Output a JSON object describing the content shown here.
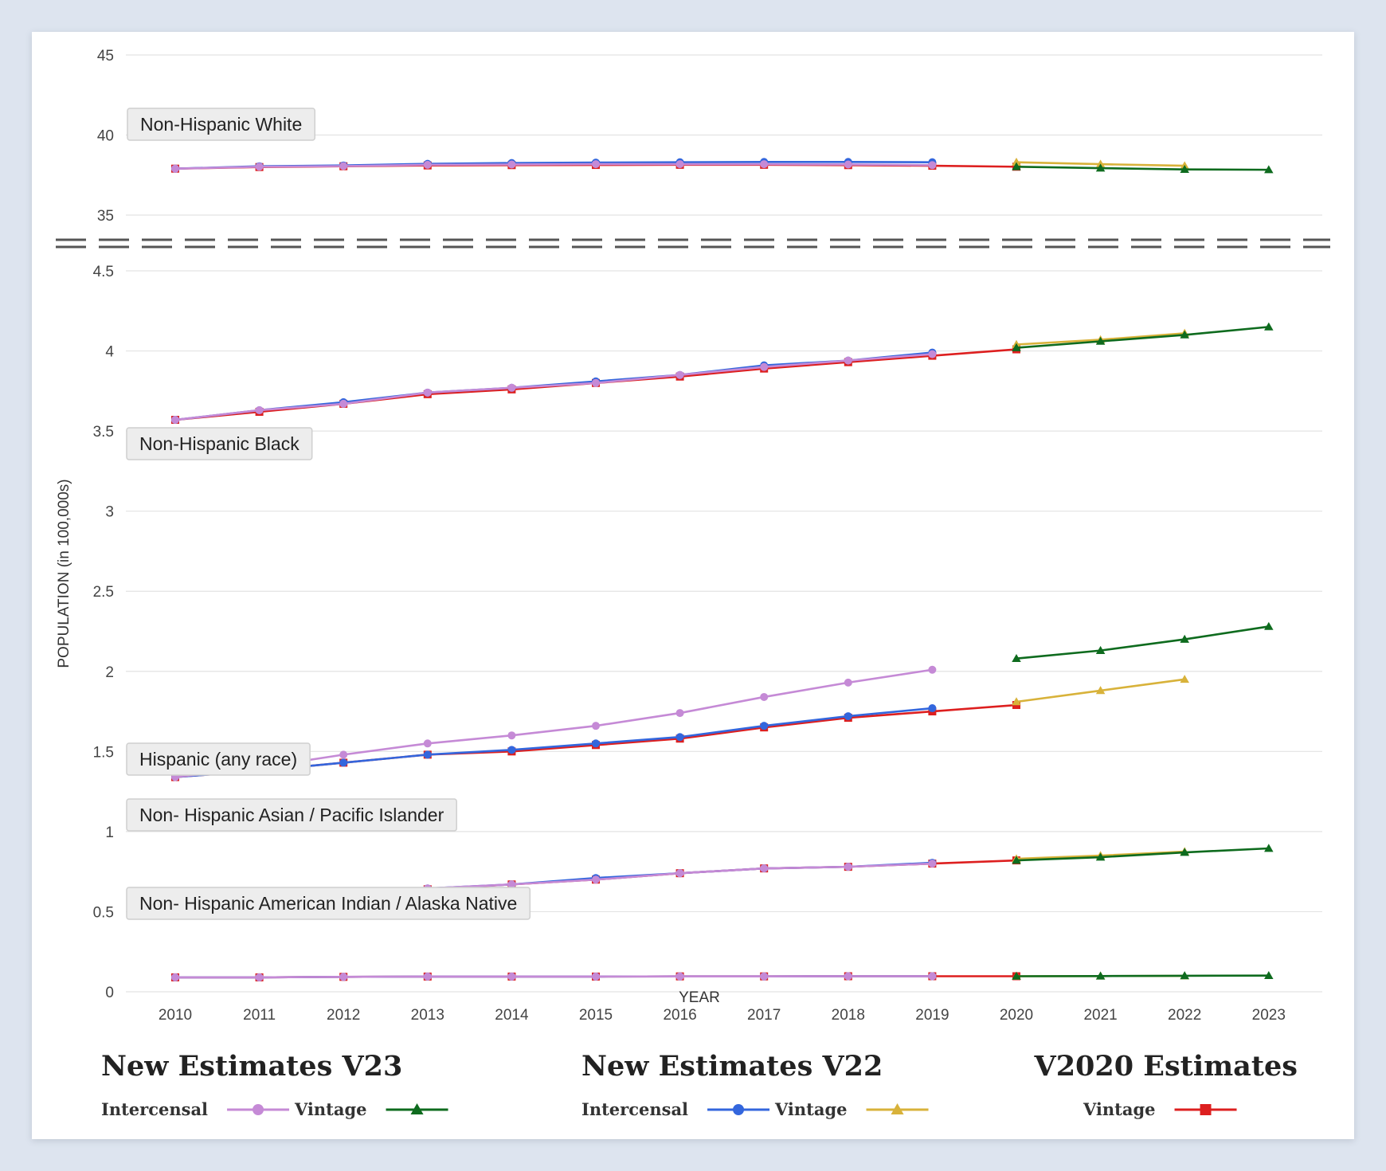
{
  "chart_data": {
    "type": "line",
    "xlabel": "YEAR",
    "ylabel": "POPULATION (in 100,000s)",
    "x_ticks": [
      "2010",
      "2011",
      "2012",
      "2013",
      "2014",
      "2015",
      "2016",
      "2017",
      "2018",
      "2019",
      "2020",
      "2021",
      "2022",
      "2023"
    ],
    "y_axis_break": true,
    "upper_panel": {
      "ylim": [
        35,
        45
      ],
      "y_ticks": [
        "35",
        "40",
        "45"
      ]
    },
    "lower_panel": {
      "ylim": [
        0,
        4.5
      ],
      "y_ticks": [
        "0",
        "0.5",
        "1",
        "1.5",
        "2",
        "2.5",
        "3",
        "3.5",
        "4",
        "4.5"
      ]
    },
    "grid": true,
    "legend_placement": "bottom",
    "groups": [
      {
        "label": "Non-Hispanic White",
        "panel": "upper",
        "series": [
          {
            "key": "v2020_vintage",
            "x": [
              2010,
              2011,
              2012,
              2013,
              2014,
              2015,
              2016,
              2017,
              2018,
              2019,
              2020
            ],
            "values": [
              37.9,
              38.0,
              38.05,
              38.1,
              38.12,
              38.13,
              38.14,
              38.14,
              38.12,
              38.08,
              38.02
            ]
          },
          {
            "key": "v22_intercensal",
            "x": [
              2010,
              2011,
              2012,
              2013,
              2014,
              2015,
              2016,
              2017,
              2018,
              2019
            ],
            "values": [
              37.9,
              38.05,
              38.1,
              38.2,
              38.25,
              38.28,
              38.3,
              38.32,
              38.32,
              38.3
            ]
          },
          {
            "key": "v22_vintage",
            "x": [
              2020,
              2021,
              2022
            ],
            "values": [
              38.3,
              38.18,
              38.08
            ]
          },
          {
            "key": "v23_intercensal",
            "x": [
              2010,
              2011,
              2012,
              2013,
              2014,
              2015,
              2016,
              2017,
              2018,
              2019
            ],
            "values": [
              37.9,
              38.02,
              38.06,
              38.14,
              38.16,
              38.18,
              38.18,
              38.18,
              38.16,
              38.12
            ]
          },
          {
            "key": "v23_vintage",
            "x": [
              2020,
              2021,
              2022,
              2023
            ],
            "values": [
              38.02,
              37.93,
              37.85,
              37.83
            ]
          }
        ]
      },
      {
        "label": "Non-Hispanic Black",
        "panel": "lower",
        "series": [
          {
            "key": "v2020_vintage",
            "x": [
              2010,
              2011,
              2012,
              2013,
              2014,
              2015,
              2016,
              2017,
              2018,
              2019,
              2020
            ],
            "values": [
              3.57,
              3.62,
              3.67,
              3.73,
              3.76,
              3.8,
              3.84,
              3.89,
              3.93,
              3.97,
              4.01
            ]
          },
          {
            "key": "v22_intercensal",
            "x": [
              2010,
              2011,
              2012,
              2013,
              2014,
              2015,
              2016,
              2017,
              2018,
              2019
            ],
            "values": [
              3.57,
              3.63,
              3.68,
              3.74,
              3.77,
              3.81,
              3.85,
              3.91,
              3.94,
              3.99
            ]
          },
          {
            "key": "v22_vintage",
            "x": [
              2020,
              2021,
              2022
            ],
            "values": [
              4.04,
              4.07,
              4.11
            ]
          },
          {
            "key": "v23_intercensal",
            "x": [
              2010,
              2011,
              2012,
              2013,
              2014,
              2015,
              2016,
              2017,
              2018,
              2019
            ],
            "values": [
              3.57,
              3.63,
              3.67,
              3.74,
              3.77,
              3.8,
              3.85,
              3.9,
              3.94,
              3.98
            ]
          },
          {
            "key": "v23_vintage",
            "x": [
              2020,
              2021,
              2022,
              2023
            ],
            "values": [
              4.02,
              4.06,
              4.1,
              4.15
            ]
          }
        ]
      },
      {
        "label": "Hispanic (any race)",
        "panel": "lower",
        "series": [
          {
            "key": "v2020_vintage",
            "x": [
              2010,
              2011,
              2012,
              2013,
              2014,
              2015,
              2016,
              2017,
              2018,
              2019,
              2020
            ],
            "values": [
              1.34,
              1.38,
              1.43,
              1.48,
              1.5,
              1.54,
              1.58,
              1.65,
              1.71,
              1.75,
              1.79
            ]
          },
          {
            "key": "v22_intercensal",
            "x": [
              2010,
              2011,
              2012,
              2013,
              2014,
              2015,
              2016,
              2017,
              2018,
              2019
            ],
            "values": [
              1.34,
              1.38,
              1.43,
              1.48,
              1.51,
              1.55,
              1.59,
              1.66,
              1.72,
              1.77
            ]
          },
          {
            "key": "v22_vintage",
            "x": [
              2020,
              2021,
              2022
            ],
            "values": [
              1.81,
              1.88,
              1.95
            ]
          },
          {
            "key": "v23_intercensal",
            "x": [
              2010,
              2011,
              2012,
              2013,
              2014,
              2015,
              2016,
              2017,
              2018,
              2019
            ],
            "values": [
              1.34,
              1.4,
              1.48,
              1.55,
              1.6,
              1.66,
              1.74,
              1.84,
              1.93,
              2.01
            ]
          },
          {
            "key": "v23_vintage",
            "x": [
              2020,
              2021,
              2022,
              2023
            ],
            "values": [
              2.08,
              2.13,
              2.2,
              2.28
            ]
          }
        ]
      },
      {
        "label": "Non- Hispanic Asian / Pacific Islander",
        "panel": "lower",
        "series": [
          {
            "key": "v2020_vintage",
            "x": [
              2010,
              2011,
              2012,
              2013,
              2014,
              2015,
              2016,
              2017,
              2018,
              2019,
              2020
            ],
            "values": [
              0.55,
              0.58,
              0.61,
              0.64,
              0.67,
              0.7,
              0.74,
              0.77,
              0.78,
              0.8,
              0.82
            ]
          },
          {
            "key": "v22_intercensal",
            "x": [
              2010,
              2011,
              2012,
              2013,
              2014,
              2015,
              2016,
              2017,
              2018,
              2019
            ],
            "values": [
              0.55,
              0.58,
              0.61,
              0.645,
              0.67,
              0.71,
              0.74,
              0.77,
              0.78,
              0.805
            ]
          },
          {
            "key": "v22_vintage",
            "x": [
              2020,
              2021,
              2022
            ],
            "values": [
              0.83,
              0.85,
              0.875
            ]
          },
          {
            "key": "v23_intercensal",
            "x": [
              2010,
              2011,
              2012,
              2013,
              2014,
              2015,
              2016,
              2017,
              2018,
              2019
            ],
            "values": [
              0.55,
              0.58,
              0.61,
              0.645,
              0.67,
              0.7,
              0.74,
              0.77,
              0.78,
              0.8
            ]
          },
          {
            "key": "v23_vintage",
            "x": [
              2020,
              2021,
              2022,
              2023
            ],
            "values": [
              0.82,
              0.84,
              0.87,
              0.895
            ]
          }
        ]
      },
      {
        "label": "Non- Hispanic American Indian / Alaska Native",
        "panel": "lower",
        "series": [
          {
            "key": "v2020_vintage",
            "x": [
              2010,
              2011,
              2012,
              2013,
              2014,
              2015,
              2016,
              2017,
              2018,
              2019,
              2020
            ],
            "values": [
              0.09,
              0.09,
              0.093,
              0.095,
              0.095,
              0.095,
              0.096,
              0.096,
              0.097,
              0.097,
              0.097
            ]
          },
          {
            "key": "v22_intercensal",
            "x": [
              2010,
              2011,
              2012,
              2013,
              2014,
              2015,
              2016,
              2017,
              2018,
              2019
            ],
            "values": [
              0.09,
              0.09,
              0.093,
              0.095,
              0.095,
              0.095,
              0.096,
              0.096,
              0.097,
              0.097
            ]
          },
          {
            "key": "v22_vintage",
            "x": [
              2020,
              2021,
              2022
            ],
            "values": [
              0.097,
              0.098,
              0.099
            ]
          },
          {
            "key": "v23_intercensal",
            "x": [
              2010,
              2011,
              2012,
              2013,
              2014,
              2015,
              2016,
              2017,
              2018,
              2019
            ],
            "values": [
              0.09,
              0.09,
              0.093,
              0.095,
              0.095,
              0.095,
              0.096,
              0.096,
              0.097,
              0.097
            ]
          },
          {
            "key": "v23_vintage",
            "x": [
              2020,
              2021,
              2022,
              2023
            ],
            "values": [
              0.097,
              0.098,
              0.1,
              0.101
            ]
          }
        ]
      }
    ],
    "series_styles": {
      "v23_intercensal": {
        "color": "#c58ad6",
        "marker": "circle"
      },
      "v23_vintage": {
        "color": "#0e6b1e",
        "marker": "triangle"
      },
      "v22_intercensal": {
        "color": "#3366dd",
        "marker": "circle"
      },
      "v22_vintage": {
        "color": "#d8b23a",
        "marker": "triangle"
      },
      "v2020_vintage": {
        "color": "#dd1f1f",
        "marker": "square"
      }
    },
    "legend": [
      {
        "heading": "New Estimates V23",
        "items": [
          {
            "label": "Intercensal",
            "style": "v23_intercensal"
          },
          {
            "label": "Vintage",
            "style": "v23_vintage"
          }
        ]
      },
      {
        "heading": "New Estimates V22",
        "items": [
          {
            "label": "Intercensal",
            "style": "v22_intercensal"
          },
          {
            "label": "Vintage",
            "style": "v22_vintage"
          }
        ]
      },
      {
        "heading": "V2020 Estimates",
        "items": [
          {
            "label": "Vintage",
            "style": "v2020_vintage"
          }
        ]
      }
    ]
  }
}
